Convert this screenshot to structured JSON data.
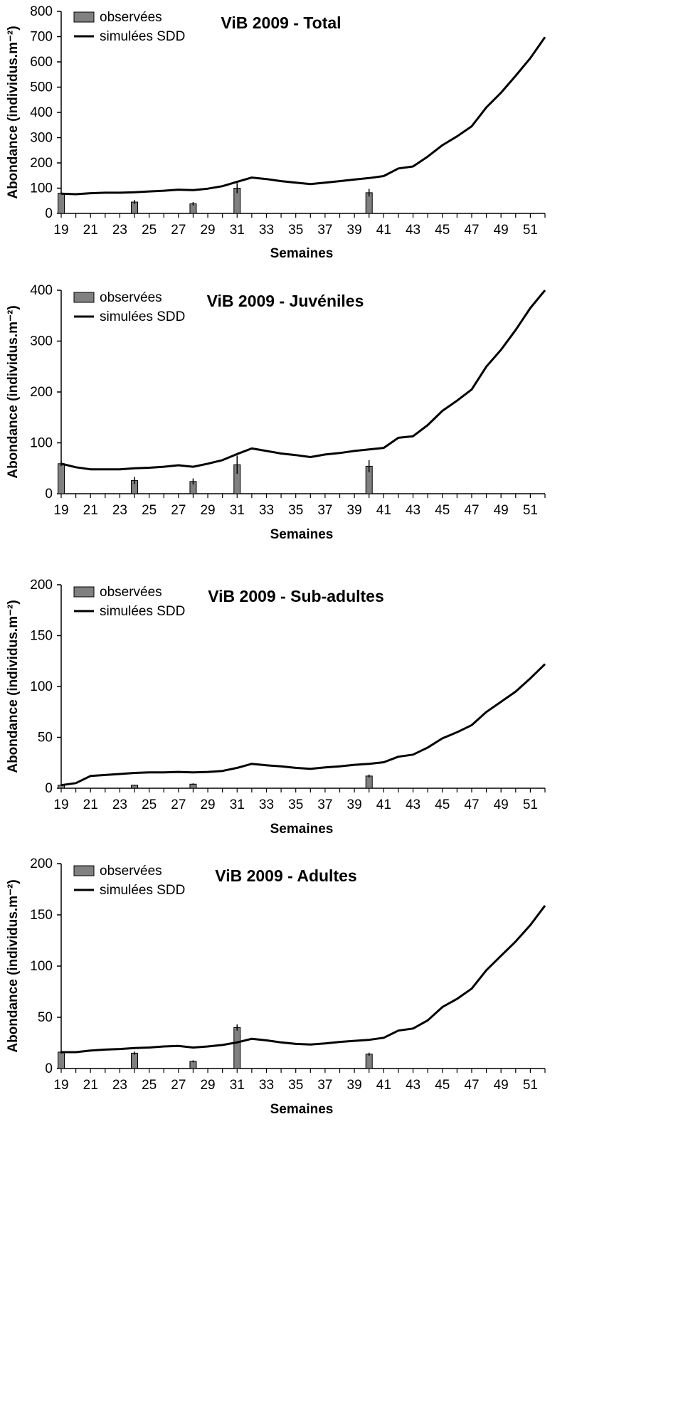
{
  "chart_data": [
    {
      "type": "bar",
      "title": "ViB 2009 - Total",
      "xlabel": "Semaines",
      "ylabel": "Abondance (individus.m⁻²)",
      "ylim": [
        0,
        800
      ],
      "yticks": [
        0,
        100,
        200,
        300,
        400,
        500,
        600,
        700,
        800
      ],
      "xlim": [
        19,
        52
      ],
      "xticks": [
        19,
        21,
        23,
        25,
        27,
        29,
        31,
        33,
        35,
        37,
        39,
        41,
        43,
        45,
        47,
        49,
        51
      ],
      "legend": {
        "position": "top-left",
        "entries": [
          "observées",
          "simulées SDD"
        ]
      },
      "observed": {
        "name": "observées",
        "color": "#808080",
        "weeks": [
          19,
          24,
          28,
          31,
          40
        ],
        "values": [
          80,
          45,
          38,
          100,
          82
        ],
        "errors": [
          5,
          8,
          7,
          20,
          15
        ]
      },
      "simulated": {
        "name": "simulées SDD",
        "color": "#000000",
        "weeks": [
          19,
          20,
          21,
          22,
          23,
          24,
          25,
          26,
          27,
          28,
          29,
          30,
          31,
          32,
          33,
          34,
          35,
          36,
          37,
          38,
          39,
          40,
          41,
          42,
          43,
          44,
          45,
          46,
          47,
          48,
          49,
          50,
          51,
          52
        ],
        "values": [
          78,
          76,
          80,
          82,
          82,
          84,
          87,
          90,
          94,
          92,
          98,
          108,
          125,
          142,
          136,
          128,
          122,
          116,
          122,
          128,
          134,
          140,
          148,
          178,
          186,
          225,
          270,
          305,
          345,
          420,
          478,
          545,
          615,
          698
        ]
      }
    },
    {
      "type": "bar",
      "title": "ViB 2009 - Juvéniles",
      "xlabel": "Semaines",
      "ylabel": "Abondance (individus.m⁻²)",
      "ylim": [
        0,
        400
      ],
      "yticks": [
        0,
        100,
        200,
        300,
        400
      ],
      "xlim": [
        19,
        52
      ],
      "xticks": [
        19,
        21,
        23,
        25,
        27,
        29,
        31,
        33,
        35,
        37,
        39,
        41,
        43,
        45,
        47,
        49,
        51
      ],
      "legend": {
        "position": "top-left",
        "entries": [
          "observées",
          "simulées SDD"
        ]
      },
      "observed": {
        "name": "observées",
        "color": "#808080",
        "weeks": [
          19,
          24,
          28,
          31,
          40
        ],
        "values": [
          59,
          26,
          24,
          57,
          54
        ],
        "errors": [
          5,
          7,
          6,
          18,
          12
        ]
      },
      "simulated": {
        "name": "simulées SDD",
        "color": "#000000",
        "weeks": [
          19,
          20,
          21,
          22,
          23,
          24,
          25,
          26,
          27,
          28,
          29,
          30,
          31,
          32,
          33,
          34,
          35,
          36,
          37,
          38,
          39,
          40,
          41,
          42,
          43,
          44,
          45,
          46,
          47,
          48,
          49,
          50,
          51,
          52
        ],
        "values": [
          59,
          52,
          48,
          48,
          48,
          50,
          51,
          53,
          56,
          53,
          59,
          66,
          78,
          89,
          84,
          79,
          76,
          72,
          77,
          80,
          84,
          87,
          90,
          110,
          113,
          135,
          163,
          183,
          205,
          250,
          283,
          322,
          365,
          400
        ]
      }
    },
    {
      "type": "bar",
      "title": "ViB 2009 - Sub-adultes",
      "xlabel": "Semaines",
      "ylabel": "Abondance (individus.m⁻²)",
      "ylim": [
        0,
        200
      ],
      "yticks": [
        0,
        50,
        100,
        150,
        200
      ],
      "xlim": [
        19,
        52
      ],
      "xticks": [
        19,
        21,
        23,
        25,
        27,
        29,
        31,
        33,
        35,
        37,
        39,
        41,
        43,
        45,
        47,
        49,
        51
      ],
      "legend": {
        "position": "top-left",
        "entries": [
          "observées",
          "simulées SDD"
        ]
      },
      "observed": {
        "name": "observées",
        "color": "#808080",
        "weeks": [
          19,
          24,
          28,
          40
        ],
        "values": [
          3,
          3,
          4,
          12
        ],
        "errors": [
          0.5,
          0.5,
          0.8,
          1.5
        ]
      },
      "simulated": {
        "name": "simulées SDD",
        "color": "#000000",
        "weeks": [
          19,
          20,
          21,
          22,
          23,
          24,
          25,
          26,
          27,
          28,
          29,
          30,
          31,
          32,
          33,
          34,
          35,
          36,
          37,
          38,
          39,
          40,
          41,
          42,
          43,
          44,
          45,
          46,
          47,
          48,
          49,
          50,
          51,
          52
        ],
        "values": [
          3,
          5,
          12,
          13,
          14,
          15,
          15.5,
          15.5,
          16,
          15.5,
          16,
          17,
          20,
          24,
          22.5,
          21.5,
          20,
          19,
          20.5,
          21.5,
          23,
          24,
          25.5,
          31,
          33,
          40,
          49,
          55,
          62,
          75,
          85,
          95,
          108,
          122
        ]
      }
    },
    {
      "type": "bar",
      "title": "ViB 2009 - Adultes",
      "xlabel": "Semaines",
      "ylabel": "Abondance (individus.m⁻²)",
      "ylim": [
        0,
        200
      ],
      "yticks": [
        0,
        50,
        100,
        150,
        200
      ],
      "xlim": [
        19,
        52
      ],
      "xticks": [
        19,
        21,
        23,
        25,
        27,
        29,
        31,
        33,
        35,
        37,
        39,
        41,
        43,
        45,
        47,
        49,
        51
      ],
      "legend": {
        "position": "top-left",
        "entries": [
          "observées",
          "simulées SDD"
        ]
      },
      "observed": {
        "name": "observées",
        "color": "#808080",
        "weeks": [
          19,
          24,
          28,
          31,
          40
        ],
        "values": [
          16,
          15,
          7,
          40,
          14
        ],
        "errors": [
          1.5,
          1.5,
          1,
          3,
          1.5
        ]
      },
      "simulated": {
        "name": "simulées SDD",
        "color": "#000000",
        "weeks": [
          19,
          20,
          21,
          22,
          23,
          24,
          25,
          26,
          27,
          28,
          29,
          30,
          31,
          32,
          33,
          34,
          35,
          36,
          37,
          38,
          39,
          40,
          41,
          42,
          43,
          44,
          45,
          46,
          47,
          48,
          49,
          50,
          51,
          52
        ],
        "values": [
          16,
          16,
          17.5,
          18.5,
          19,
          20,
          20.5,
          21.5,
          22,
          20.5,
          21.5,
          23,
          25.5,
          29,
          27.5,
          25.5,
          24,
          23.5,
          24.5,
          26,
          27,
          28,
          30,
          37,
          39,
          47,
          60,
          68,
          78,
          96,
          110,
          124,
          140,
          159
        ]
      }
    }
  ]
}
